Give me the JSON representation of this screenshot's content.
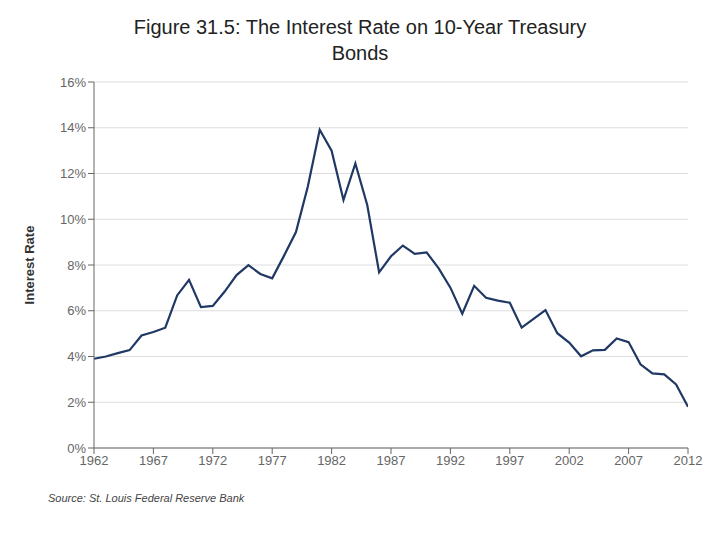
{
  "chart_data": {
    "type": "line",
    "title": "Figure 31.5: The Interest Rate on 10-Year Treasury\nBonds",
    "ylabel": "Interest Rate",
    "annotations": [
      "Source: St. Louis Federal Reserve Bank"
    ],
    "color": "#1F3864",
    "x": [
      1962,
      1963,
      1964,
      1965,
      1966,
      1967,
      1968,
      1969,
      1970,
      1971,
      1972,
      1973,
      1974,
      1975,
      1976,
      1977,
      1978,
      1979,
      1980,
      1981,
      1982,
      1983,
      1984,
      1985,
      1986,
      1987,
      1988,
      1989,
      1990,
      1991,
      1992,
      1993,
      1994,
      1995,
      1996,
      1997,
      1998,
      1999,
      2000,
      2001,
      2002,
      2003,
      2004,
      2005,
      2006,
      2007,
      2008,
      2009,
      2010,
      2011,
      2012
    ],
    "values": [
      3.9,
      4.0,
      4.15,
      4.28,
      4.92,
      5.07,
      5.26,
      6.67,
      7.35,
      6.16,
      6.21,
      6.84,
      7.56,
      7.99,
      7.61,
      7.42,
      8.41,
      9.44,
      11.43,
      13.91,
      13.0,
      10.84,
      12.44,
      10.62,
      7.68,
      8.38,
      8.85,
      8.49,
      8.55,
      7.86,
      7.01,
      5.87,
      7.09,
      6.57,
      6.44,
      6.35,
      5.26,
      5.64,
      6.03,
      5.02,
      4.61,
      4.01,
      4.27,
      4.29,
      4.79,
      4.63,
      3.66,
      3.26,
      3.22,
      2.78,
      1.8
    ],
    "xlim": [
      1962,
      2012
    ],
    "ylim": [
      0,
      16
    ],
    "xticks": [
      1962,
      1967,
      1972,
      1977,
      1982,
      1987,
      1992,
      1997,
      2002,
      2007,
      2012
    ],
    "yticks": [
      {
        "value": 0,
        "label": "0%"
      },
      {
        "value": 2,
        "label": "2%"
      },
      {
        "value": 4,
        "label": "4%"
      },
      {
        "value": 6,
        "label": "6%"
      },
      {
        "value": 8,
        "label": "8%"
      },
      {
        "value": 10,
        "label": "10%"
      },
      {
        "value": 12,
        "label": "12%"
      },
      {
        "value": 14,
        "label": "14%"
      },
      {
        "value": 16,
        "label": "16%"
      }
    ],
    "grid": true
  }
}
